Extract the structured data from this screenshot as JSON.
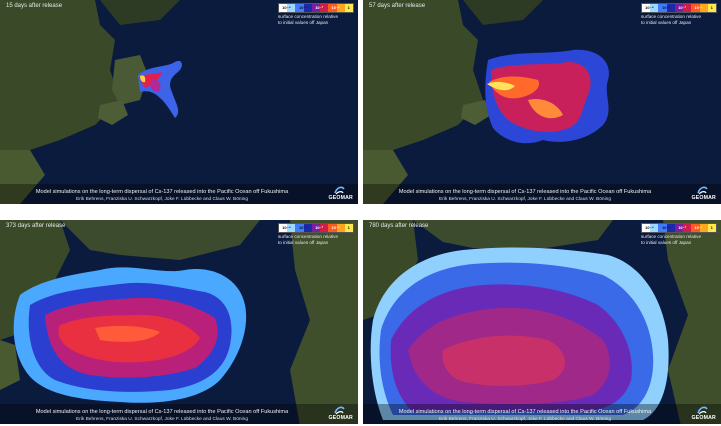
{
  "panels": [
    {
      "days": "15 days after release"
    },
    {
      "days": "57 days after release"
    },
    {
      "days": "373 days after release"
    },
    {
      "days": "780 days after release"
    }
  ],
  "legend": {
    "ticks": [
      "10⁻⁴",
      "10⁻³",
      "10⁻²",
      "10⁻¹",
      "1"
    ],
    "text_line1": "surface concentration relative",
    "text_line2": "to initial values off Japan",
    "colors": [
      "#ffffff",
      "#9fd8ff",
      "#3f7cff",
      "#1b2aa8",
      "#7a1fa0",
      "#d01e4a",
      "#ff5a1e",
      "#ffa51e",
      "#ffe84a"
    ]
  },
  "caption": "Model simulations on the long-term dispersal of Cs-137 released into the Pacific Ocean off Fukushima",
  "authors": "Erik Behrens, Franziska U. Schwarzkopf, Joke F. Lübbecke and Claus W. Böning",
  "logo": {
    "name": "GEOMAR",
    "icon": "geomar-swirl-icon"
  }
}
